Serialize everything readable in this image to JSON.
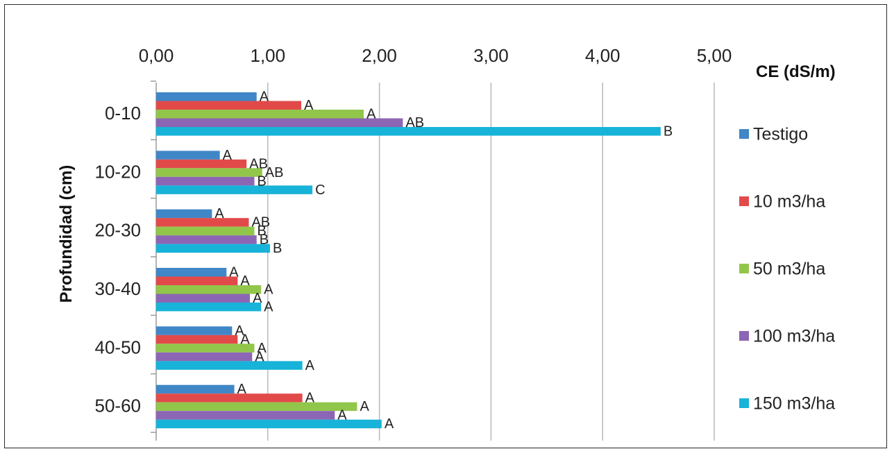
{
  "chart_data": {
    "type": "bar",
    "orientation": "horizontal",
    "categories": [
      "0-10",
      "10-20",
      "20-30",
      "30-40",
      "40-50",
      "50-60"
    ],
    "xlabel": "CE (dS/m)",
    "ylabel": "Profundidad (cm)",
    "xlim": [
      0,
      5
    ],
    "xticks": [
      "0,00",
      "1,00",
      "2,00",
      "3,00",
      "4,00",
      "5,00"
    ],
    "x_axis_position": "top",
    "grid": "vertical",
    "legend_position": "right",
    "series": [
      {
        "name": "Testigo",
        "color": "#3f87c6",
        "values": [
          0.9,
          0.57,
          0.5,
          0.63,
          0.68,
          0.7
        ],
        "labels": [
          "A",
          "A",
          "A",
          "A",
          "A",
          "A"
        ]
      },
      {
        "name": "10 m3/ha",
        "color": "#e24a4a",
        "values": [
          1.3,
          0.81,
          0.83,
          0.73,
          0.73,
          1.31
        ],
        "labels": [
          "A",
          "AB",
          "AB",
          "A",
          "A",
          "A"
        ]
      },
      {
        "name": "50 m3/ha",
        "color": "#92c64a",
        "values": [
          1.86,
          0.95,
          0.88,
          0.94,
          0.88,
          1.8
        ],
        "labels": [
          "A",
          "AB",
          "B",
          "A",
          "A",
          "A"
        ]
      },
      {
        "name": "100 m3/ha",
        "color": "#8c66b4",
        "values": [
          2.21,
          0.88,
          0.9,
          0.84,
          0.86,
          1.6
        ],
        "labels": [
          "AB",
          "B",
          "B",
          "A",
          "A",
          "A"
        ]
      },
      {
        "name": "150 m3/ha",
        "color": "#18b3d8",
        "values": [
          4.52,
          1.4,
          1.02,
          0.94,
          1.31,
          2.02
        ],
        "labels": [
          "B",
          "C",
          "B",
          "A",
          "A",
          "A"
        ]
      }
    ]
  }
}
